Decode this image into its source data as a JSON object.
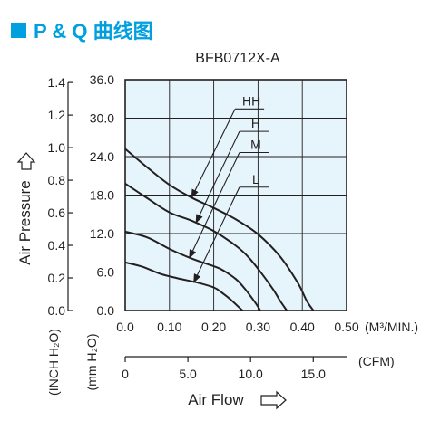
{
  "heading": {
    "marker_color": "#00a0e0",
    "text": "P & Q 曲线图",
    "color": "#00a0e0"
  },
  "chart_data": {
    "type": "line",
    "title": "BFB0712X-A",
    "xlim": [
      0,
      0.5
    ],
    "ylim": [
      0,
      36
    ],
    "x_ticks": [
      "0.0",
      "0.10",
      "0.20",
      "0.30",
      "0.40",
      "0.50"
    ],
    "x_unit": "(M³/MIN.)",
    "x2_ticks": [
      "0",
      "5.0",
      "10.0",
      "15.0"
    ],
    "x2_values": [
      0,
      5,
      10,
      15
    ],
    "x2_unit": "(CFM)",
    "y_ticks_mm": [
      "0.0",
      "6.0",
      "12.0",
      "18.0",
      "24.0",
      "30.0",
      "36.0"
    ],
    "y_ticks_inch": [
      "0.0",
      "0.2",
      "0.4",
      "0.6",
      "0.8",
      "1.0",
      "1.2",
      "1.4"
    ],
    "y_inch_values": [
      0,
      0.2,
      0.4,
      0.6,
      0.8,
      1.0,
      1.2,
      1.4
    ],
    "y_unit_mm": "(mm H₂O)",
    "y_unit_inch": "(INCH H₂O)",
    "ylabel": "Air Pressure",
    "xlabel": "Air Flow",
    "plot_bg": "#e6f4fb",
    "line_color": "#231f20",
    "grid": true,
    "series": [
      {
        "name": "HH",
        "x": [
          0,
          0.05,
          0.1,
          0.15,
          0.2,
          0.25,
          0.3,
          0.35,
          0.39,
          0.41,
          0.425
        ],
        "y": [
          25.2,
          22.3,
          19.6,
          17.6,
          16.0,
          14.2,
          11.9,
          8.4,
          4.3,
          1.5,
          0
        ]
      },
      {
        "name": "H",
        "x": [
          0,
          0.05,
          0.1,
          0.15,
          0.2,
          0.25,
          0.28,
          0.31,
          0.335,
          0.35,
          0.365
        ],
        "y": [
          19.8,
          17.5,
          15.3,
          14.0,
          12.4,
          10.1,
          8.2,
          5.6,
          3.2,
          1.5,
          0
        ]
      },
      {
        "name": "M",
        "x": [
          0,
          0.05,
          0.1,
          0.15,
          0.2,
          0.22,
          0.25,
          0.27,
          0.29,
          0.3,
          0.305
        ],
        "y": [
          12.3,
          11.4,
          9.6,
          8.1,
          6.9,
          6.3,
          4.9,
          3.4,
          1.6,
          0.6,
          0
        ]
      },
      {
        "name": "L",
        "x": [
          0,
          0.04,
          0.08,
          0.12,
          0.16,
          0.2,
          0.22,
          0.24,
          0.26,
          0.265
        ],
        "y": [
          7.5,
          6.8,
          5.7,
          5.0,
          4.4,
          3.6,
          2.7,
          1.6,
          0.3,
          0
        ]
      }
    ],
    "annotations": [
      {
        "label": "HH",
        "target": [
          0.15,
          17.6
        ],
        "text_at": [
          0.285,
          32.0
        ]
      },
      {
        "label": "H",
        "target": [
          0.16,
          13.7
        ],
        "text_at": [
          0.295,
          28.5
        ]
      },
      {
        "label": "M",
        "target": [
          0.145,
          8.2
        ],
        "text_at": [
          0.295,
          25.2
        ]
      },
      {
        "label": "L",
        "target": [
          0.155,
          4.4
        ],
        "text_at": [
          0.295,
          19.8
        ]
      }
    ]
  }
}
